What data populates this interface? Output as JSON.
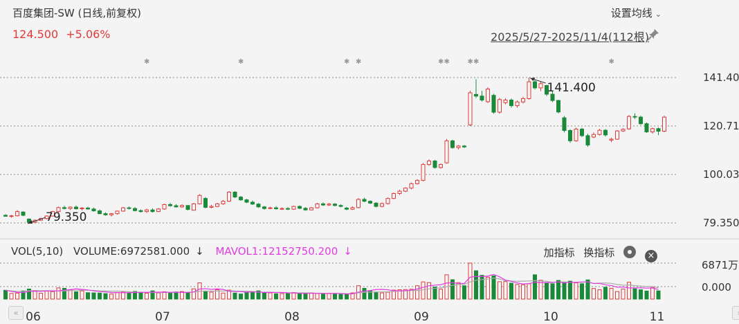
{
  "header": {
    "title": "百度集团-SW (日线,前复权)",
    "price": "124.500",
    "change": "+5.06%",
    "settings_label": "设置均线",
    "date_range": "2025/5/27-2025/11/4(112根)"
  },
  "volume_panel": {
    "vol_label": "VOL(5,10)",
    "volume_text": "VOLUME:6972581.000",
    "mavol_text": "MAVOL1:12152750.200",
    "arrow": "↓",
    "add_indicator": "加指标",
    "switch_indicator": "换指标"
  },
  "colors": {
    "up": "#e03a3a",
    "down": "#1a8a3a",
    "mavol1": "#e23be3",
    "mavol2": "#aaaaaa",
    "grid": "#888888"
  },
  "chart_data": [
    {
      "type": "candlestick",
      "ylim": [
        79.35,
        141.4
      ],
      "y_ticks": [
        "141.400",
        "120.717",
        "100.033",
        "79.350"
      ],
      "x_ticks": [
        "06",
        "07",
        "08",
        "09",
        "10",
        "11"
      ],
      "annotations": {
        "high": "141.400",
        "low": "79.350"
      },
      "ohlc": [
        [
          82.6,
          83.1,
          82.0,
          82.2
        ],
        [
          82.2,
          82.8,
          81.6,
          82.4
        ],
        [
          82.4,
          84.8,
          82.1,
          84.2
        ],
        [
          84.0,
          84.3,
          82.2,
          82.6
        ],
        [
          81.0,
          81.3,
          79.35,
          79.6
        ],
        [
          79.6,
          80.8,
          79.4,
          80.5
        ],
        [
          80.5,
          81.6,
          80.2,
          81.2
        ],
        [
          81.2,
          82.6,
          80.9,
          82.3
        ],
        [
          82.3,
          84.5,
          82.0,
          84.2
        ],
        [
          84.2,
          86.3,
          83.8,
          85.9
        ],
        [
          85.9,
          86.7,
          85.1,
          85.5
        ],
        [
          85.5,
          86.4,
          84.9,
          86.1
        ],
        [
          86.1,
          86.8,
          85.0,
          85.4
        ],
        [
          85.4,
          86.1,
          84.7,
          85.7
        ],
        [
          85.7,
          86.3,
          85.0,
          85.3
        ],
        [
          85.3,
          85.9,
          84.2,
          84.5
        ],
        [
          84.5,
          85.1,
          83.0,
          83.3
        ],
        [
          83.3,
          83.9,
          82.4,
          82.8
        ],
        [
          82.8,
          83.6,
          82.1,
          83.3
        ],
        [
          83.3,
          84.6,
          82.9,
          84.4
        ],
        [
          84.4,
          86.1,
          84.1,
          85.8
        ],
        [
          85.8,
          86.4,
          85.1,
          85.5
        ],
        [
          85.5,
          86.1,
          84.2,
          84.6
        ],
        [
          84.6,
          85.1,
          83.8,
          84.2
        ],
        [
          84.2,
          85.4,
          83.6,
          84.9
        ],
        [
          84.9,
          85.6,
          83.8,
          84.2
        ],
        [
          84.2,
          85.7,
          84.0,
          85.3
        ],
        [
          85.3,
          87.6,
          85.0,
          87.2
        ],
        [
          87.2,
          87.9,
          86.3,
          86.7
        ],
        [
          86.7,
          87.4,
          85.9,
          86.2
        ],
        [
          86.2,
          87.3,
          85.8,
          86.8
        ],
        [
          86.8,
          86.9,
          84.7,
          85.1
        ],
        [
          84.8,
          87.9,
          84.6,
          87.5
        ],
        [
          87.5,
          91.6,
          87.2,
          91.1
        ],
        [
          89.8,
          90.4,
          85.6,
          86.0
        ],
        [
          86.0,
          87.1,
          85.6,
          86.4
        ],
        [
          86.4,
          87.9,
          86.0,
          87.5
        ],
        [
          87.5,
          89.1,
          87.1,
          88.6
        ],
        [
          88.6,
          92.9,
          88.3,
          92.5
        ],
        [
          92.5,
          92.9,
          90.0,
          90.4
        ],
        [
          90.4,
          90.8,
          88.8,
          89.2
        ],
        [
          89.2,
          89.6,
          87.8,
          88.2
        ],
        [
          88.2,
          88.9,
          87.0,
          87.4
        ],
        [
          87.4,
          87.8,
          85.8,
          86.2
        ],
        [
          86.2,
          86.6,
          85.0,
          85.5
        ],
        [
          85.5,
          86.3,
          85.2,
          85.8
        ],
        [
          85.8,
          86.5,
          85.0,
          85.4
        ],
        [
          85.4,
          86.0,
          84.9,
          85.5
        ],
        [
          85.5,
          86.1,
          84.8,
          85.2
        ],
        [
          85.2,
          86.7,
          85.0,
          86.4
        ],
        [
          86.4,
          86.8,
          85.2,
          85.6
        ],
        [
          85.6,
          86.1,
          84.6,
          84.9
        ],
        [
          84.9,
          86.1,
          84.7,
          85.8
        ],
        [
          85.8,
          87.9,
          85.5,
          87.5
        ],
        [
          87.5,
          88.1,
          86.6,
          87.0
        ],
        [
          87.0,
          87.9,
          86.6,
          87.4
        ],
        [
          87.4,
          87.8,
          86.4,
          86.8
        ],
        [
          86.8,
          87.3,
          86.0,
          86.4
        ],
        [
          85.7,
          86.2,
          84.8,
          85.2
        ],
        [
          85.2,
          86.4,
          84.9,
          85.9
        ],
        [
          85.9,
          89.9,
          85.6,
          89.4
        ],
        [
          89.4,
          90.1,
          88.2,
          88.6
        ],
        [
          88.6,
          89.0,
          87.4,
          87.8
        ],
        [
          87.8,
          88.2,
          86.0,
          86.4
        ],
        [
          86.4,
          88.1,
          86.0,
          87.6
        ],
        [
          87.6,
          90.2,
          87.2,
          89.8
        ],
        [
          89.8,
          92.3,
          89.5,
          91.9
        ],
        [
          91.9,
          93.5,
          91.3,
          92.9
        ],
        [
          92.9,
          94.6,
          92.5,
          94.2
        ],
        [
          94.2,
          96.6,
          93.7,
          96.1
        ],
        [
          96.1,
          98.0,
          95.7,
          97.5
        ],
        [
          97.5,
          104.9,
          97.1,
          104.3
        ],
        [
          104.3,
          106.5,
          103.7,
          105.8
        ],
        [
          105.8,
          106.2,
          102.5,
          103.0
        ],
        [
          103.0,
          104.7,
          102.5,
          104.3
        ],
        [
          105.0,
          115.2,
          104.6,
          114.4
        ],
        [
          114.4,
          114.8,
          111.0,
          111.5
        ],
        [
          111.5,
          112.6,
          110.7,
          112.2
        ],
        [
          112.2,
          112.6,
          111.3,
          111.8
        ],
        [
          121.2,
          135.8,
          120.7,
          134.9
        ],
        [
          134.2,
          140.7,
          132.7,
          133.5
        ],
        [
          133.5,
          135.7,
          131.1,
          131.8
        ],
        [
          131.1,
          137.3,
          130.5,
          136.5
        ],
        [
          133.8,
          134.5,
          126.0,
          126.6
        ],
        [
          126.6,
          132.7,
          126.0,
          132.0
        ],
        [
          130.7,
          132.6,
          130.0,
          131.8
        ],
        [
          131.8,
          132.5,
          128.6,
          129.4
        ],
        [
          129.4,
          131.6,
          128.5,
          131.0
        ],
        [
          131.0,
          133.2,
          130.3,
          132.4
        ],
        [
          132.4,
          141.4,
          132.0,
          139.6
        ],
        [
          139.6,
          140.4,
          136.3,
          137.0
        ],
        [
          137.0,
          139.5,
          135.6,
          138.8
        ],
        [
          138.0,
          138.3,
          133.5,
          134.3
        ],
        [
          134.3,
          135.7,
          131.0,
          131.6
        ],
        [
          131.6,
          131.9,
          126.1,
          126.7
        ],
        [
          124.2,
          125.0,
          118.0,
          118.8
        ],
        [
          118.8,
          119.3,
          113.5,
          114.4
        ],
        [
          114.4,
          120.0,
          114.0,
          119.4
        ],
        [
          119.4,
          119.9,
          116.0,
          116.6
        ],
        [
          116.6,
          117.4,
          111.8,
          112.6
        ],
        [
          116.0,
          118.0,
          115.5,
          117.1
        ],
        [
          117.1,
          119.5,
          116.6,
          118.9
        ],
        [
          118.9,
          119.4,
          116.2,
          116.9
        ],
        [
          114.7,
          115.7,
          113.8,
          115.1
        ],
        [
          115.1,
          119.0,
          114.8,
          118.6
        ],
        [
          118.6,
          119.8,
          118.2,
          119.3
        ],
        [
          119.5,
          125.4,
          119.1,
          124.8
        ],
        [
          124.8,
          126.1,
          123.7,
          124.5
        ],
        [
          124.5,
          125.1,
          121.2,
          121.7
        ],
        [
          121.7,
          122.2,
          117.8,
          118.2
        ],
        [
          118.2,
          120.0,
          117.5,
          119.6
        ],
        [
          119.6,
          120.1,
          116.8,
          118.5
        ],
        [
          118.5,
          125.2,
          118.1,
          124.5
        ]
      ],
      "volume": [
        4.8,
        3.1,
        3.3,
        4.5,
        5.5,
        4.7,
        3.2,
        4.4,
        4.1,
        6.1,
        5.9,
        5.1,
        4.0,
        4.5,
        3.5,
        3.4,
        3.3,
        3.0,
        2.8,
        3.6,
        3.9,
        3.3,
        4.2,
        3.8,
        3.2,
        4.5,
        3.4,
        4.0,
        3.2,
        3.9,
        4.1,
        3.6,
        5.6,
        8.9,
        4.4,
        3.8,
        5.1,
        3.3,
        4.9,
        3.3,
        2.8,
        3.7,
        4.1,
        4.5,
        3.6,
        3.4,
        2.9,
        3.0,
        3.0,
        3.6,
        3.3,
        2.9,
        3.4,
        3.1,
        2.7,
        3.2,
        3.0,
        2.6,
        2.7,
        3.4,
        7.3,
        5.9,
        4.6,
        3.6,
        3.4,
        3.8,
        4.9,
        5.1,
        5.2,
        5.4,
        7.3,
        9.4,
        9.0,
        6.6,
        5.4,
        13.3,
        10.6,
        9.0,
        7.3,
        19.7,
        15.5,
        13.0,
        12.0,
        12.7,
        9.5,
        9.6,
        8.7,
        8.0,
        7.8,
        8.4,
        13.3,
        10.3,
        8.8,
        8.4,
        10.2,
        9.1,
        9.8,
        8.9,
        8.4,
        10.5,
        5.8,
        5.1,
        6.5,
        5.9,
        4.1,
        5.5,
        9.2,
        5.6,
        5.1,
        4.4,
        6.3,
        4.5
      ],
      "mavol1": [
        4.8,
        4.2,
        3.7,
        3.6,
        4.2,
        4.3,
        4.2,
        4.5,
        4.4,
        4.5,
        4.9,
        5.2,
        5.6,
        5.3,
        5.0,
        4.5,
        4.1,
        3.9,
        3.6,
        3.5,
        3.5,
        3.5,
        3.6,
        3.7,
        3.7,
        3.8,
        3.8,
        3.8,
        3.7,
        3.8,
        3.7,
        3.6,
        3.9,
        5.5,
        5.7,
        5.3,
        5.6,
        5.3,
        4.3,
        4.1,
        4.1,
        3.8,
        3.9,
        3.9,
        3.6,
        3.6,
        3.6,
        3.6,
        3.4,
        3.3,
        3.2,
        3.1,
        3.2,
        3.1,
        3.1,
        3.0,
        3.1,
        3.0,
        2.8,
        2.9,
        3.8,
        4.3,
        4.7,
        5.2,
        5.3,
        5.1,
        4.6,
        4.5,
        4.6,
        4.9,
        5.5,
        6.4,
        7.3,
        7.6,
        7.9,
        8.8,
        9.0,
        8.5,
        8.6,
        12.0,
        12.4,
        12.3,
        12.6,
        13.5,
        12.2,
        10.4,
        9.7,
        8.8,
        8.3,
        8.5,
        9.2,
        9.0,
        9.0,
        9.1,
        9.4,
        8.9,
        9.3,
        9.1,
        9.4,
        9.4,
        8.5,
        8.6,
        7.8,
        7.4,
        6.5,
        6.6,
        6.1,
        6.1,
        6.2,
        6.0,
        6.1,
        5.2
      ],
      "mavol2": [
        4.8,
        4.5,
        4.2,
        4.2,
        4.6,
        4.6,
        4.6,
        4.6,
        4.6,
        4.4,
        4.5,
        4.7,
        4.8,
        4.9,
        4.8,
        4.7,
        4.5,
        4.4,
        4.3,
        4.3,
        4.2,
        4.0,
        3.8,
        3.7,
        3.6,
        3.6,
        3.6,
        3.7,
        3.6,
        3.7,
        3.7,
        3.7,
        3.8,
        4.3,
        4.4,
        4.3,
        4.4,
        4.4,
        4.6,
        4.4,
        4.3,
        4.3,
        4.2,
        3.8,
        3.8,
        3.8,
        3.6,
        3.6,
        3.4,
        3.4,
        3.4,
        3.4,
        3.3,
        3.2,
        3.2,
        3.1,
        3.1,
        3.1,
        3.0,
        3.0,
        3.4,
        3.7,
        3.8,
        3.9,
        3.9,
        4.0,
        4.2,
        4.4,
        4.6,
        4.7,
        4.7,
        5.1,
        5.6,
        5.9,
        6.1,
        6.8,
        7.5,
        7.9,
        8.1,
        9.4,
        10.3,
        10.7,
        11.0,
        11.5,
        11.0,
        10.0,
        9.9,
        9.7,
        9.8,
        9.9,
        10.1,
        9.9,
        9.7,
        9.2,
        9.4,
        9.4,
        9.2,
        9.2,
        9.2,
        9.4,
        8.6,
        8.7,
        8.8,
        8.6,
        8.0,
        7.6,
        7.7,
        7.4,
        7.1,
        6.9,
        6.9,
        6.2
      ],
      "vol_ticks": [
        "6871万",
        "0.000"
      ]
    }
  ]
}
